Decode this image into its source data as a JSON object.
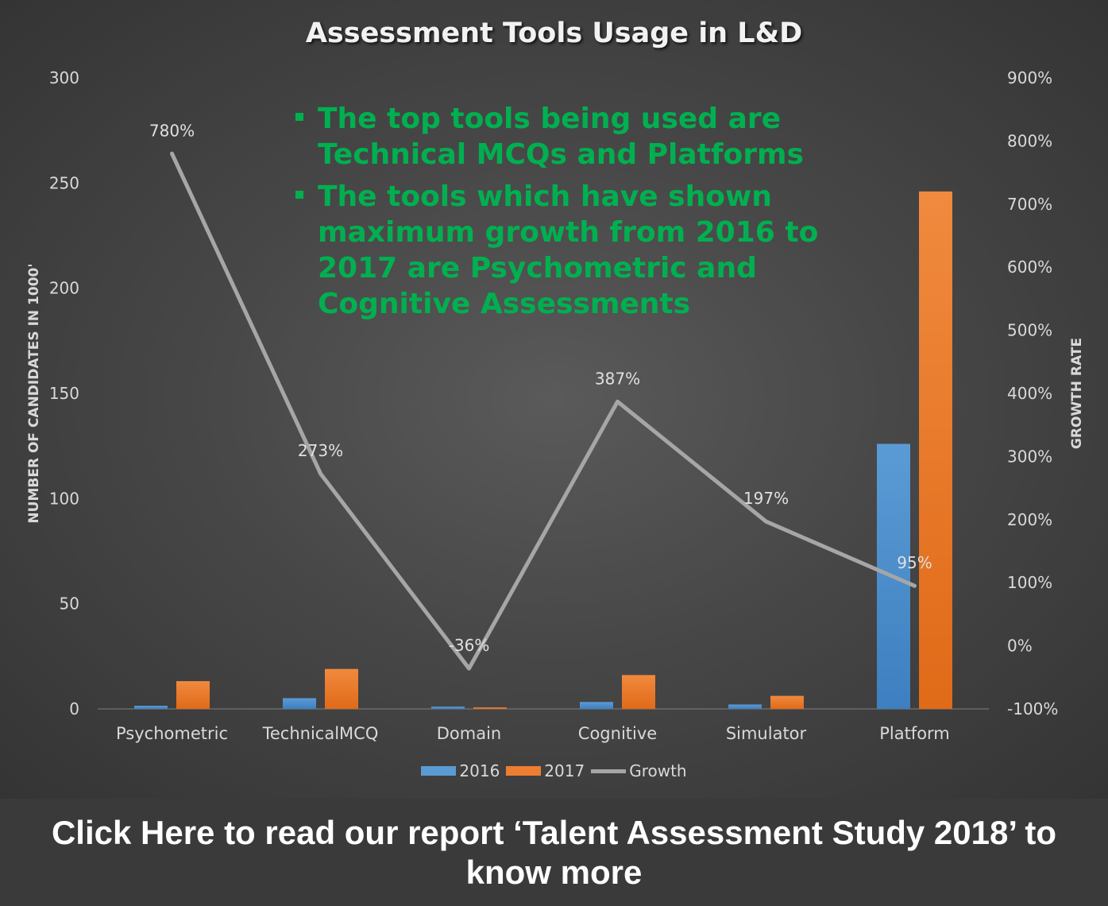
{
  "chart_data": {
    "type": "bar",
    "title": "Assessment Tools Usage in L&D",
    "ylabel": "NUMBER OF CANDIDATES IN 1000'",
    "y2label": "GROWTH RATE",
    "categories": [
      "Psychometric",
      "TechnicalMCQ",
      "Domain",
      "Cognitive",
      "Simulator",
      "Platform"
    ],
    "ylim": [
      0,
      300
    ],
    "y2lim": [
      -1.0,
      9.0
    ],
    "yticks": [
      "0",
      "50",
      "100",
      "150",
      "200",
      "250",
      "300"
    ],
    "y2ticks": [
      "-100%",
      "0%",
      "100%",
      "200%",
      "300%",
      "400%",
      "500%",
      "600%",
      "700%",
      "800%",
      "900%"
    ],
    "series": [
      {
        "name": "2016",
        "type": "bar",
        "axis": "left",
        "color": "#5b9bd5",
        "values": [
          1.5,
          5.1,
          1.1,
          3.3,
          2.1,
          126
        ]
      },
      {
        "name": "2017",
        "type": "bar",
        "axis": "left",
        "color": "#ed7d31",
        "values": [
          13.2,
          19.0,
          0.7,
          16.1,
          6.2,
          246
        ]
      },
      {
        "name": "Growth",
        "type": "line",
        "axis": "right",
        "color": "#a6a6a6",
        "values": [
          7.8,
          2.73,
          -0.36,
          3.87,
          1.97,
          0.95
        ],
        "labels": [
          "780%",
          "273%",
          "-36%",
          "387%",
          "197%",
          "95%"
        ]
      }
    ],
    "grid": false,
    "legend_position": "bottom"
  },
  "insights": [
    "The top tools being used are Technical MCQs and Platforms",
    "The tools which have shown maximum growth from 2016 to 2017 are Psychometric and Cognitive Assessments"
  ],
  "cta": {
    "text": "Click Here to read our report ‘Talent Assessment Study 2018’ to know more"
  }
}
